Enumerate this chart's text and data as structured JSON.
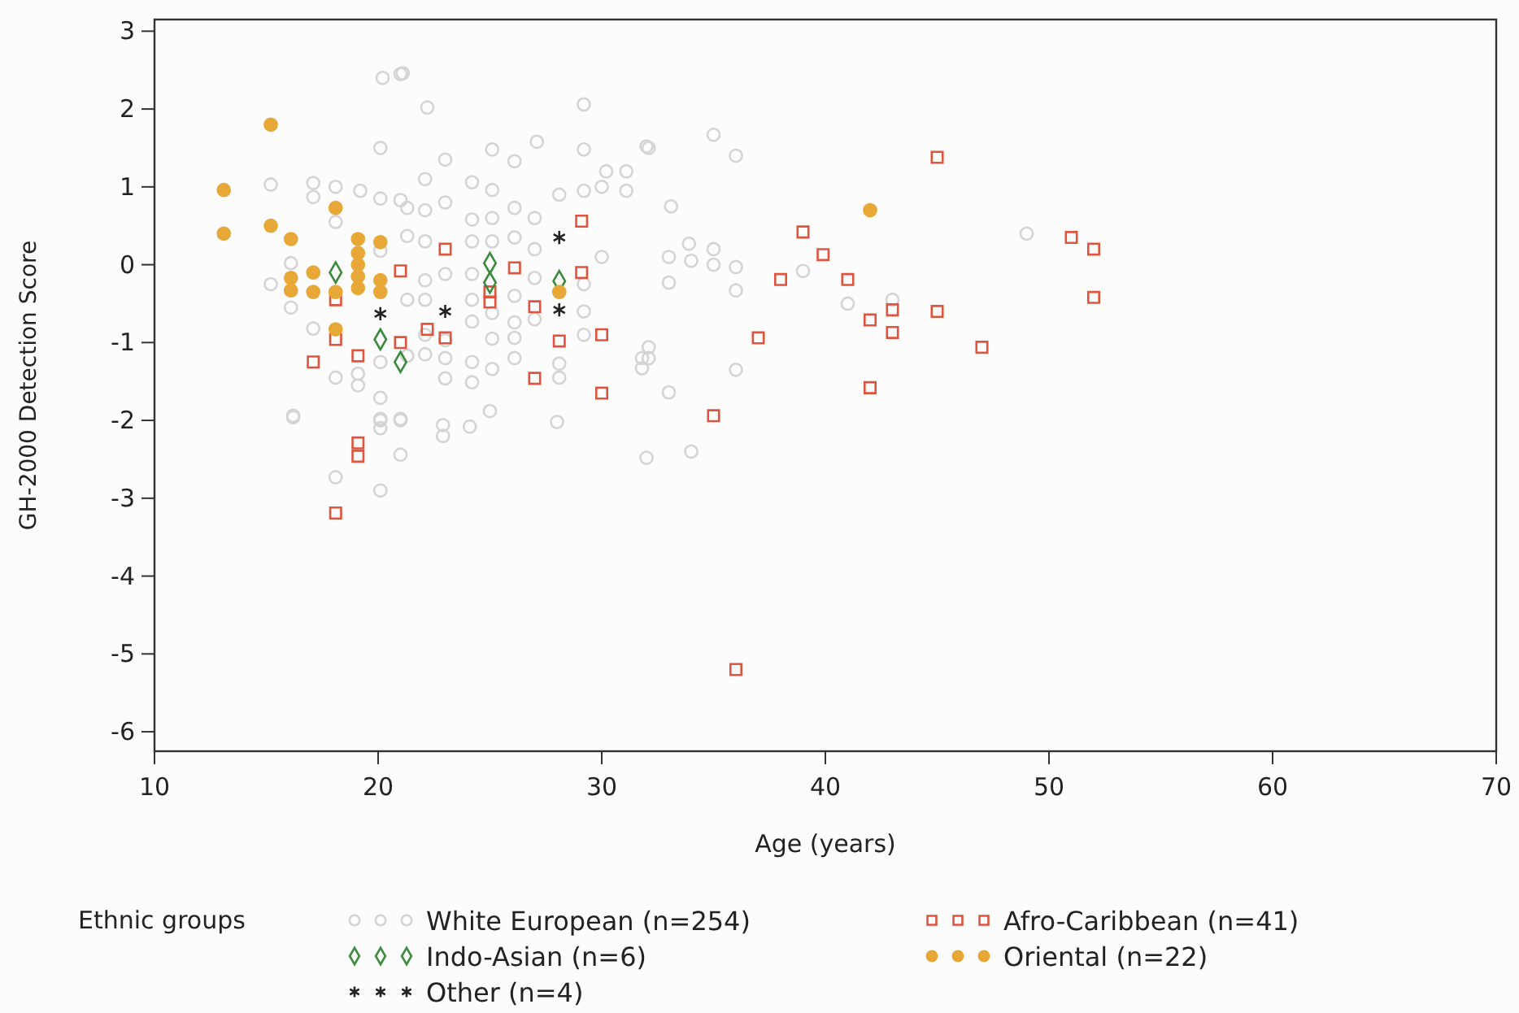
{
  "chart_data": {
    "type": "scatter",
    "xlabel": "Age (years)",
    "ylabel": "GH-2000 Detection Score",
    "legend_title": "Ethnic groups",
    "legend": "bottom",
    "grid": false,
    "xlim": [
      10,
      70
    ],
    "xticks": [
      10,
      20,
      30,
      40,
      50,
      60,
      70
    ],
    "ylim": [
      -6.25,
      3.15
    ],
    "yticks": [
      -6,
      -5,
      -4,
      -3,
      -2,
      -1,
      0,
      1,
      2,
      3
    ],
    "series": [
      {
        "name": "White European (n=254)",
        "color": "#d4d4d4",
        "marker": "circle",
        "x": [
          20.2,
          21,
          20.1,
          15.2,
          17.1,
          18.1,
          19.2,
          20.1,
          21,
          17.1,
          18.1,
          16.1,
          15.2,
          16.1,
          17.1,
          20.1,
          20.1,
          19.1,
          19.1,
          18.1,
          20.1,
          16.2,
          20.1,
          21,
          21.1,
          22.2,
          29.2,
          25.1,
          27.1,
          29.2,
          26.1,
          30.2,
          31.1,
          31.1,
          32,
          22.1,
          23,
          24.2,
          25.1,
          21.3,
          22.1,
          23,
          24.2,
          25.1,
          26.1,
          27,
          28.1,
          29.2,
          30,
          21.3,
          22.1,
          24.2,
          25.1,
          26.1,
          27,
          30,
          22.1,
          23,
          24.2,
          27,
          29.2,
          21.3,
          22.1,
          24.2,
          26.1,
          27,
          29.2,
          24.2,
          25.1,
          26.1,
          26.1,
          25.1,
          22.1,
          23,
          21.3,
          22.1,
          23,
          24.2,
          25.1,
          26.1,
          28.1,
          29.2,
          23,
          24.2,
          28.1,
          31.8,
          31.8,
          16.2,
          20.1,
          21,
          20.1,
          21,
          18.1,
          20.1,
          22.9,
          22.9,
          24.1,
          25,
          28,
          32,
          35,
          32.1,
          36,
          33.1,
          33.9,
          35,
          33,
          34,
          35,
          36,
          33,
          36,
          39,
          41,
          43,
          49,
          32.1,
          32.1,
          36,
          33,
          34
        ],
        "values": [
          2.4,
          2.45,
          1.5,
          1.03,
          1.05,
          1.0,
          0.95,
          0.85,
          0.83,
          0.87,
          0.55,
          0.02,
          -0.25,
          -0.55,
          -0.82,
          0.18,
          -1.25,
          -1.4,
          -1.55,
          -1.45,
          -1.71,
          -1.96,
          -1.98,
          -1.98,
          2.46,
          2.02,
          2.06,
          1.48,
          1.58,
          1.48,
          1.33,
          1.2,
          1.2,
          0.95,
          1.52,
          1.1,
          1.35,
          1.06,
          0.96,
          0.73,
          0.7,
          0.8,
          0.58,
          0.6,
          0.73,
          0.6,
          0.9,
          0.95,
          1.0,
          0.37,
          0.3,
          0.3,
          0.3,
          0.35,
          0.2,
          0.1,
          -0.2,
          -0.12,
          -0.12,
          -0.17,
          -0.25,
          -0.45,
          -0.45,
          -0.45,
          -0.4,
          -0.7,
          -0.6,
          -0.73,
          -0.62,
          -0.74,
          -0.94,
          -0.95,
          -0.9,
          -0.97,
          -1.17,
          -1.15,
          -1.2,
          -1.25,
          -1.34,
          -1.2,
          -1.27,
          -0.9,
          -1.46,
          -1.51,
          -1.45,
          -1.2,
          -1.33,
          -1.94,
          -2.0,
          -2.0,
          -2.1,
          -2.44,
          -2.73,
          -2.9,
          -2.06,
          -2.2,
          -2.08,
          -1.88,
          -2.02,
          -2.48,
          1.67,
          1.5,
          1.4,
          0.75,
          0.27,
          0.2,
          0.1,
          0.05,
          0.0,
          -0.03,
          -0.23,
          -0.33,
          -0.08,
          -0.5,
          -0.45,
          0.4,
          -1.06,
          -1.2,
          -1.35,
          -1.64,
          -2.4
        ]
      },
      {
        "name": "Afro-Caribbean (n=41)",
        "color": "#e0533c",
        "marker": "square",
        "x": [
          21,
          18.1,
          18.1,
          19.1,
          17.1,
          21,
          23,
          26.1,
          29.1,
          29.1,
          27,
          25,
          25,
          22.2,
          23,
          28.1,
          30,
          27,
          30,
          19.1,
          19.1,
          18.1,
          45,
          39,
          39.9,
          38,
          41,
          42,
          43,
          43,
          45,
          47,
          42,
          37,
          35,
          51,
          52,
          52,
          36
        ],
        "values": [
          -0.08,
          -0.45,
          -0.96,
          -1.17,
          -1.25,
          -1.0,
          0.2,
          -0.04,
          0.56,
          -0.1,
          -0.54,
          -0.35,
          -0.48,
          -0.83,
          -0.94,
          -0.98,
          -0.9,
          -1.46,
          -1.65,
          -2.29,
          -2.46,
          -3.19,
          1.38,
          0.42,
          0.13,
          -0.19,
          -0.19,
          -0.71,
          -0.58,
          -0.87,
          -0.6,
          -1.06,
          -1.58,
          -0.94,
          -1.94,
          0.35,
          0.2,
          -0.42,
          -5.2
        ]
      },
      {
        "name": "Indo-Asian (n=6)",
        "color": "#3a8a3a",
        "marker": "diamond",
        "x": [
          18.1,
          20.1,
          21,
          25,
          25,
          28.1
        ],
        "values": [
          -0.1,
          -0.96,
          -1.25,
          0.02,
          -0.23,
          -0.21
        ]
      },
      {
        "name": "Oriental (n=22)",
        "color": "#e8a838",
        "marker": "circle",
        "x": [
          13.1,
          13.1,
          15.2,
          15.2,
          16.1,
          16.1,
          16.1,
          17.1,
          17.1,
          18.1,
          18.1,
          18.1,
          19.1,
          19.1,
          19.1,
          19.1,
          19.1,
          20.1,
          20.1,
          20.1,
          28.1,
          42
        ],
        "values": [
          0.96,
          0.4,
          1.8,
          0.5,
          0.33,
          -0.17,
          -0.33,
          -0.1,
          -0.35,
          0.73,
          -0.35,
          -0.83,
          0.33,
          0.15,
          0.0,
          -0.15,
          -0.3,
          0.29,
          -0.2,
          -0.35,
          -0.35,
          0.7
        ]
      },
      {
        "name": "Other (n=4)",
        "color": "#222222",
        "marker": "cross",
        "x": [
          20.1,
          23,
          28.1,
          28.1
        ],
        "values": [
          -0.63,
          -0.6,
          0.35,
          -0.58
        ]
      }
    ]
  }
}
